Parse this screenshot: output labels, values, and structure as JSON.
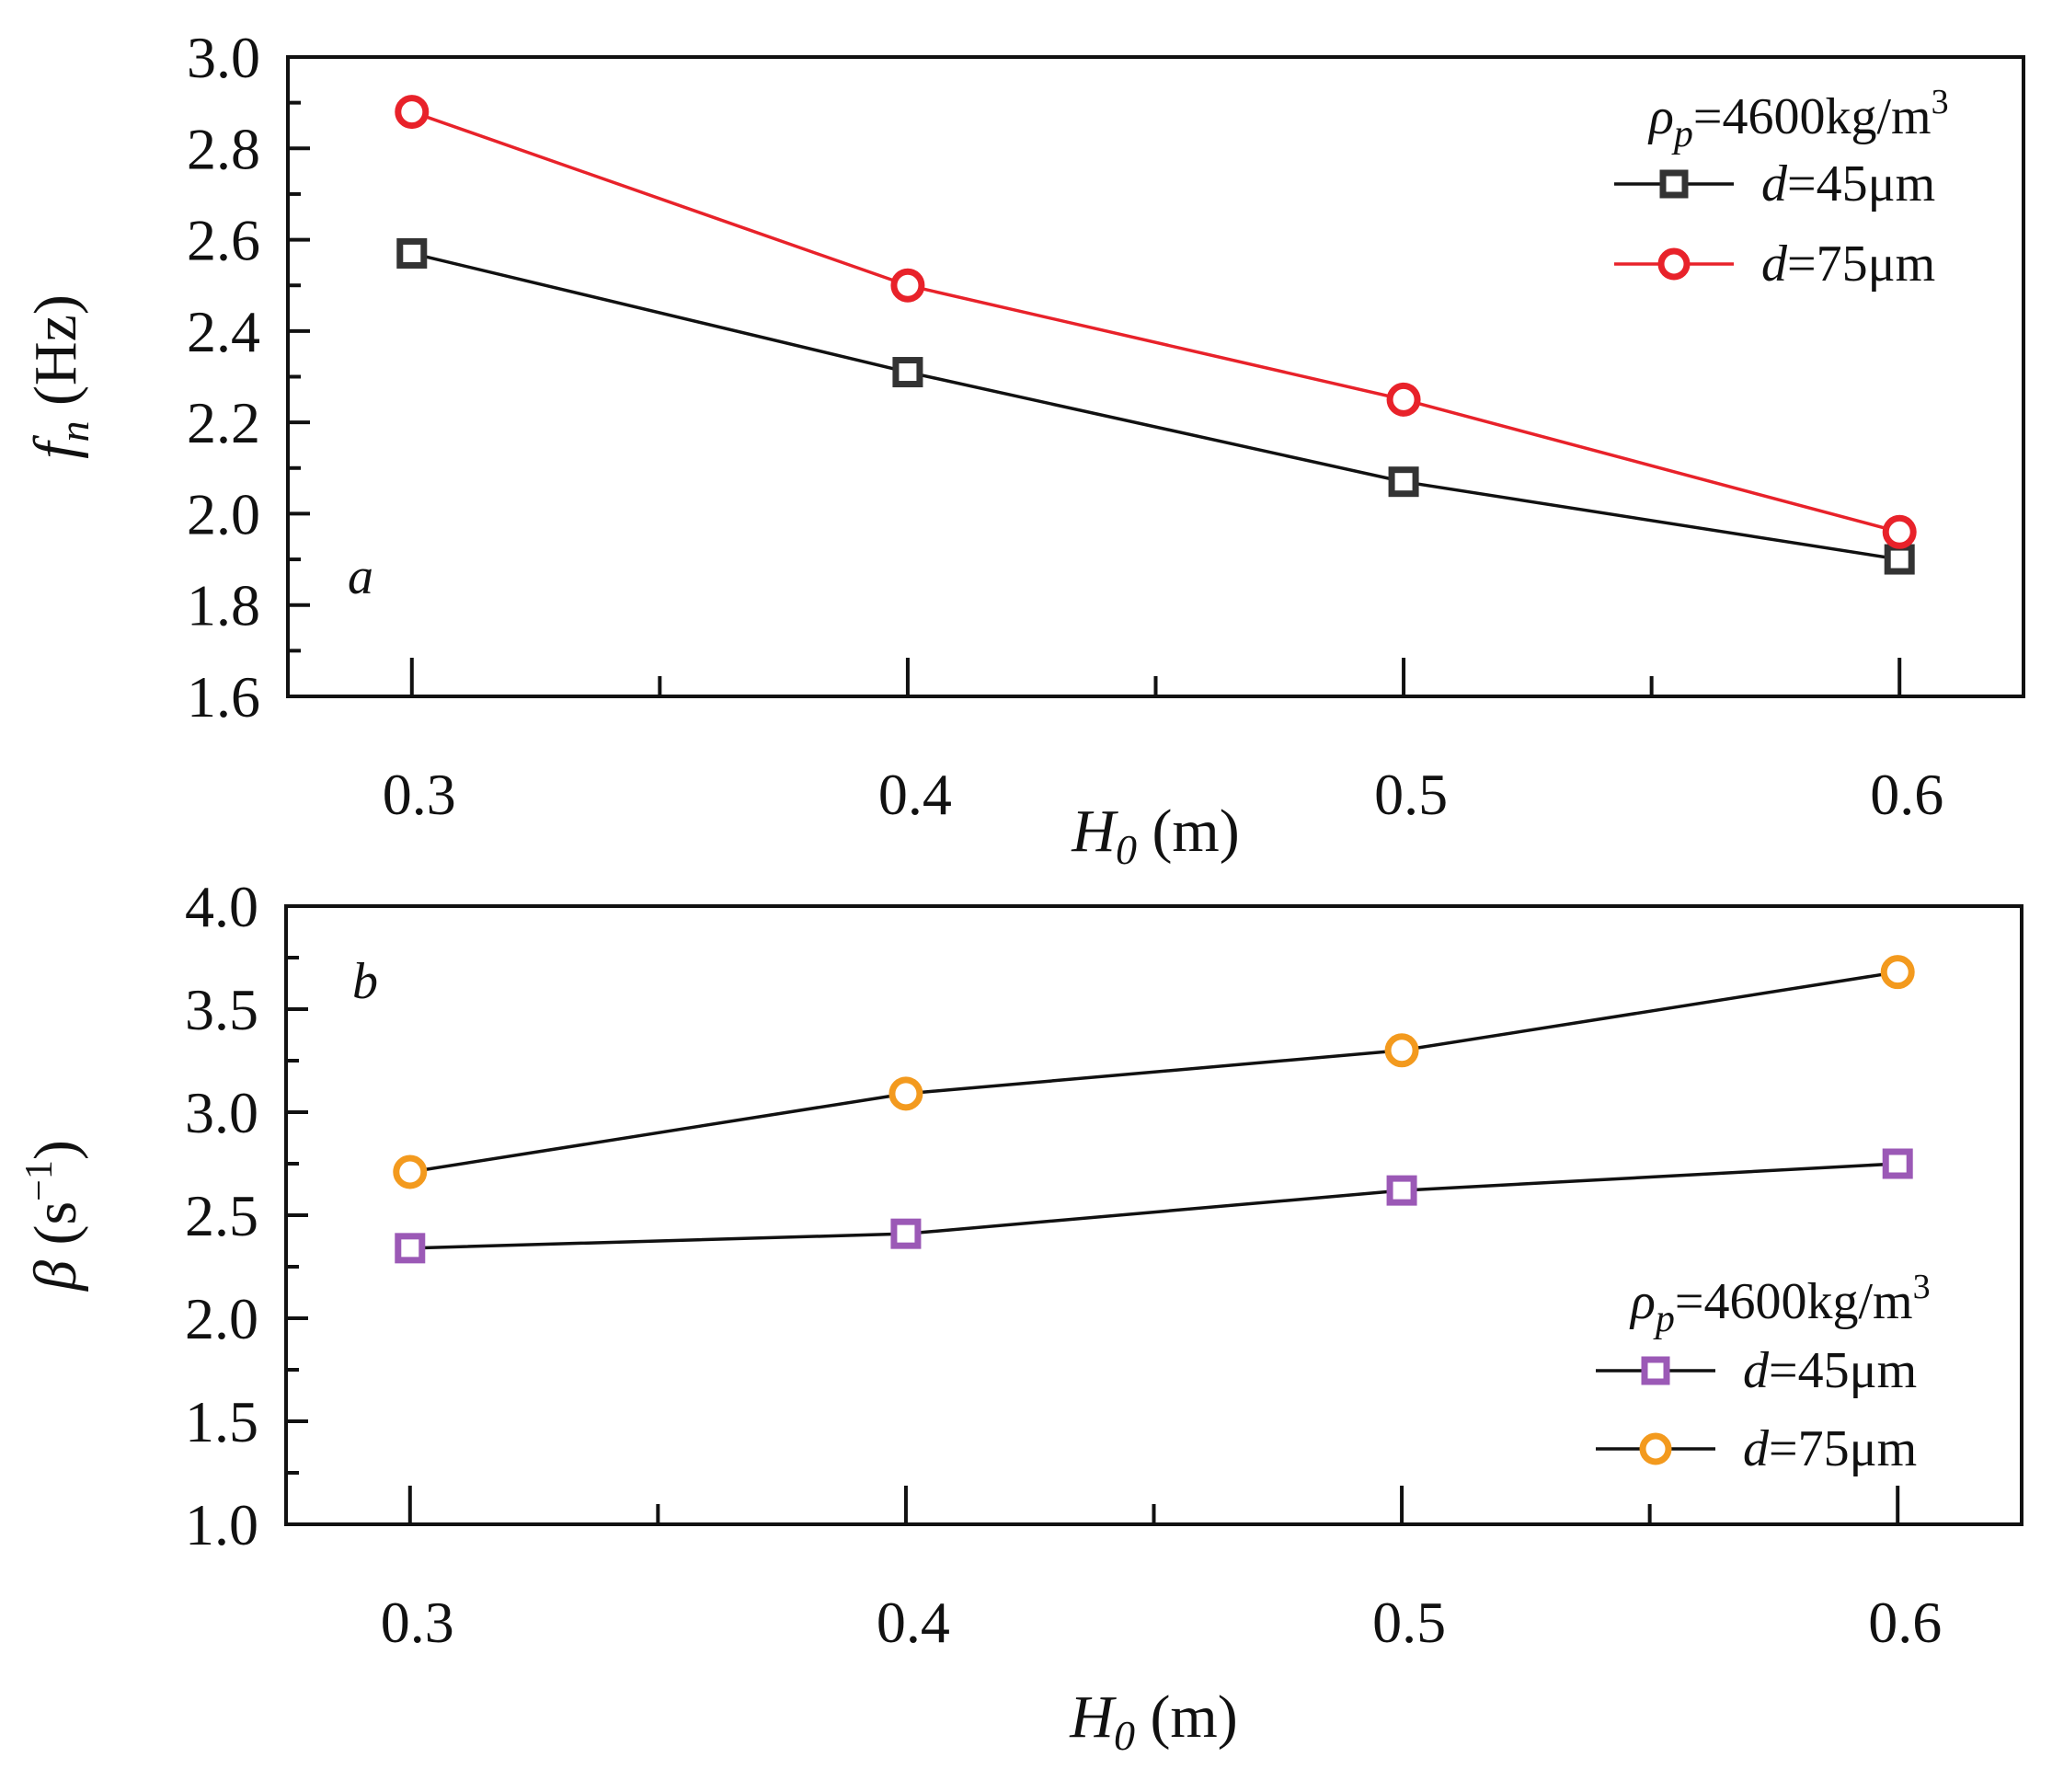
{
  "chart_data": [
    {
      "type": "line",
      "panel_label": "a",
      "x": [
        0.3,
        0.4,
        0.5,
        0.6
      ],
      "xlim": [
        0.275,
        0.625
      ],
      "ylim": [
        1.6,
        3.0
      ],
      "x_ticks": [
        0.3,
        0.4,
        0.5,
        0.6
      ],
      "x_tick_labels": [
        "0.3",
        "0.4",
        "0.5",
        "0.6"
      ],
      "y_ticks": [
        1.6,
        1.8,
        2.0,
        2.2,
        2.4,
        2.6,
        2.8,
        3.0
      ],
      "y_tick_labels": [
        "1.6",
        "1.8",
        "2.0",
        "2.2",
        "2.4",
        "2.6",
        "2.8",
        "3.0"
      ],
      "xlabel": {
        "main": "H",
        "sub": "0",
        "unit": " (m)"
      },
      "ylabel": {
        "main": "f",
        "sub": "n",
        "unit": " (Hz)"
      },
      "legend": {
        "position": "top-right",
        "header": {
          "main": "ρ",
          "sub": "p",
          "text": "=4600kg/m",
          "sup": "3"
        }
      },
      "series": [
        {
          "name_var": "d",
          "name_text": "=45μm",
          "marker": "square",
          "line_color": "#111111",
          "marker_color": "#333333",
          "values": [
            2.57,
            2.31,
            2.07,
            1.9
          ]
        },
        {
          "name_var": "d",
          "name_text": "=75μm",
          "marker": "circle",
          "line_color": "#e8222a",
          "marker_color": "#e8222a",
          "values": [
            2.88,
            2.5,
            2.25,
            1.96
          ]
        }
      ]
    },
    {
      "type": "line",
      "panel_label": "b",
      "x": [
        0.3,
        0.4,
        0.5,
        0.6
      ],
      "xlim": [
        0.275,
        0.625
      ],
      "ylim": [
        1.0,
        4.0
      ],
      "x_ticks": [
        0.3,
        0.4,
        0.5,
        0.6
      ],
      "x_tick_labels": [
        "0.3",
        "0.4",
        "0.5",
        "0.6"
      ],
      "y_ticks": [
        1.0,
        1.5,
        2.0,
        2.5,
        3.0,
        3.5,
        4.0
      ],
      "y_tick_labels": [
        "1.0",
        "1.5",
        "2.0",
        "2.5",
        "3.0",
        "3.5",
        "4.0"
      ],
      "xlabel": {
        "main": "H",
        "sub": "0",
        "unit": " (m)"
      },
      "ylabel": {
        "main": "β",
        "unit": " (s",
        "sup": "−1",
        "close": ")"
      },
      "legend": {
        "position": "bottom-right",
        "header": {
          "main": "ρ",
          "sub": "p",
          "text": "=4600kg/m",
          "sup": "3"
        }
      },
      "series": [
        {
          "name_var": "d",
          "name_text": "=45μm",
          "marker": "square",
          "line_color": "#111111",
          "marker_color": "#9b59b6",
          "values": [
            2.34,
            2.41,
            2.62,
            2.75
          ]
        },
        {
          "name_var": "d",
          "name_text": "=75μm",
          "marker": "circle",
          "line_color": "#111111",
          "marker_color": "#f39a1e",
          "values": [
            2.71,
            3.09,
            3.3,
            3.68
          ]
        }
      ]
    }
  ]
}
